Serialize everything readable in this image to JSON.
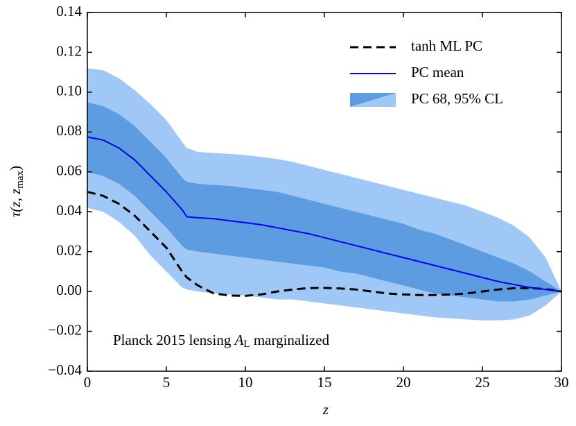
{
  "chart_data": {
    "type": "line",
    "xlabel": "z",
    "ylabel": {
      "main": "τ(z, z",
      "sub": "max",
      "end": ")"
    },
    "annotation": {
      "text": "Planck 2015 lensing ",
      "math": "A",
      "sub": "L",
      "end": " marginalized"
    },
    "legend": "upper right",
    "xlim": [
      0,
      30
    ],
    "ylim": [
      -0.04,
      0.14
    ],
    "xticks": [
      0,
      5,
      10,
      15,
      20,
      25,
      30
    ],
    "yticks": [
      {
        "value": -0.04,
        "label": "−0.04"
      },
      {
        "value": -0.02,
        "label": "−0.02"
      },
      {
        "value": 0,
        "label": "0.00"
      },
      {
        "value": 0.02,
        "label": "0.02"
      },
      {
        "value": 0.04,
        "label": "0.04"
      },
      {
        "value": 0.06,
        "label": "0.06"
      },
      {
        "value": 0.08,
        "label": "0.08"
      },
      {
        "value": 0.1,
        "label": "0.10"
      },
      {
        "value": 0.12,
        "label": "0.12"
      },
      {
        "value": 0.14,
        "label": "0.14"
      }
    ],
    "x": [
      0,
      1,
      2,
      3,
      4,
      5,
      6,
      6.3,
      7,
      8,
      9,
      10,
      11,
      12,
      13,
      14,
      15,
      16,
      17,
      18,
      19,
      20,
      21,
      22,
      23,
      24,
      25,
      26,
      27,
      28,
      29,
      30
    ],
    "series": [
      {
        "name": "tanh ML PC",
        "color": "#000000",
        "dashed": true,
        "values": [
          0.05,
          0.048,
          0.044,
          0.038,
          0.03,
          0.022,
          0.01,
          0.007,
          0.003,
          -0.001,
          -0.002,
          -0.0022,
          -0.0015,
          0,
          0.001,
          0.0017,
          0.0018,
          0.0015,
          0.001,
          0,
          -0.001,
          -0.0015,
          -0.0018,
          -0.0018,
          -0.0015,
          -0.001,
          0,
          0.001,
          0.0016,
          0.0017,
          0.0012,
          0
        ]
      },
      {
        "name": "PC mean",
        "color": "#0000ee",
        "values": [
          0.0775,
          0.076,
          0.072,
          0.066,
          0.058,
          0.05,
          0.041,
          0.0375,
          0.037,
          0.0365,
          0.0355,
          0.0345,
          0.0335,
          0.032,
          0.0305,
          0.029,
          0.027,
          0.025,
          0.023,
          0.021,
          0.019,
          0.017,
          0.015,
          0.013,
          0.011,
          0.009,
          0.007,
          0.005,
          0.0035,
          0.002,
          0.001,
          0
        ]
      },
      {
        "name": "PC 68, 95% CL",
        "type": "band",
        "colors": [
          "#5d9ce0",
          "#9fc8f6"
        ],
        "upper95": [
          0.112,
          0.111,
          0.107,
          0.101,
          0.094,
          0.086,
          0.075,
          0.072,
          0.07,
          0.0695,
          0.069,
          0.0685,
          0.0675,
          0.0665,
          0.065,
          0.063,
          0.061,
          0.059,
          0.057,
          0.055,
          0.053,
          0.051,
          0.049,
          0.047,
          0.045,
          0.043,
          0.04,
          0.037,
          0.033,
          0.027,
          0.017,
          0
        ],
        "upper68": [
          0.095,
          0.093,
          0.089,
          0.083,
          0.075,
          0.067,
          0.057,
          0.055,
          0.054,
          0.0535,
          0.053,
          0.052,
          0.051,
          0.05,
          0.048,
          0.046,
          0.044,
          0.042,
          0.04,
          0.038,
          0.036,
          0.034,
          0.031,
          0.029,
          0.026,
          0.023,
          0.02,
          0.017,
          0.014,
          0.01,
          0.005,
          0
        ],
        "lower68": [
          0.06,
          0.058,
          0.054,
          0.048,
          0.04,
          0.032,
          0.023,
          0.021,
          0.02,
          0.019,
          0.018,
          0.017,
          0.016,
          0.015,
          0.014,
          0.013,
          0.012,
          0.01,
          0.009,
          0.007,
          0.005,
          0.003,
          0.001,
          -0.001,
          -0.002,
          -0.003,
          -0.004,
          -0.005,
          -0.005,
          -0.004,
          -0.002,
          0
        ],
        "lower95": [
          0.042,
          0.04,
          0.035,
          0.028,
          0.018,
          0.01,
          0.002,
          0.001,
          0,
          -0.001,
          -0.0015,
          -0.002,
          -0.003,
          -0.004,
          -0.004,
          -0.005,
          -0.006,
          -0.007,
          -0.008,
          -0.009,
          -0.01,
          -0.011,
          -0.012,
          -0.013,
          -0.0135,
          -0.014,
          -0.0145,
          -0.0145,
          -0.014,
          -0.012,
          -0.007,
          0
        ]
      }
    ]
  }
}
